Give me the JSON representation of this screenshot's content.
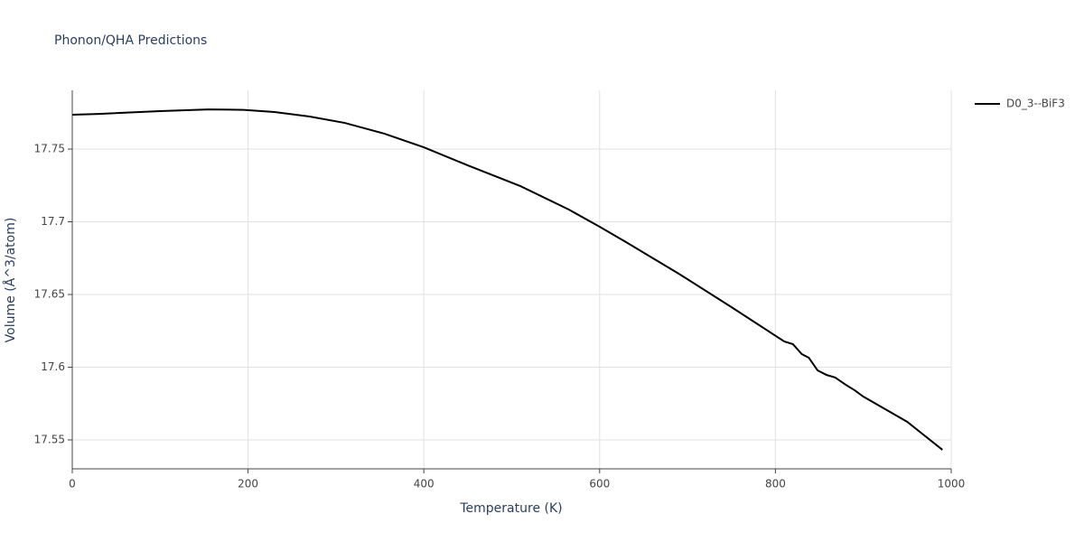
{
  "chart_data": {
    "type": "line",
    "title": "Phonon/QHA Predictions",
    "x_label": "Temperature (K)",
    "y_label": "Volume (Å^3/atom)",
    "x": [
      0,
      30,
      100,
      155,
      195,
      230,
      270,
      310,
      355,
      400,
      450,
      510,
      565,
      600,
      630,
      690,
      750,
      810,
      820,
      830,
      838,
      848,
      858,
      868,
      880,
      890,
      900,
      950,
      990
    ],
    "series": [
      {
        "name": "D0_3--BiF3",
        "color": "#000000",
        "values": [
          17.7736,
          17.7742,
          17.7761,
          17.7773,
          17.777,
          17.7755,
          17.7724,
          17.768,
          17.7606,
          17.7512,
          17.7388,
          17.7245,
          17.7084,
          17.6966,
          17.686,
          17.6643,
          17.6413,
          17.6177,
          17.6158,
          17.609,
          17.6065,
          17.5978,
          17.5947,
          17.5929,
          17.5879,
          17.5842,
          17.5798,
          17.5624,
          17.5432
        ]
      }
    ],
    "xlim": [
      0,
      1000
    ],
    "xticks": [
      0,
      200,
      400,
      600,
      800,
      1000
    ],
    "ylim": [
      17.5301,
      17.7904
    ],
    "yticks": [
      17.55,
      17.6,
      17.65,
      17.7,
      17.75
    ],
    "grid": true,
    "legend": "right"
  }
}
